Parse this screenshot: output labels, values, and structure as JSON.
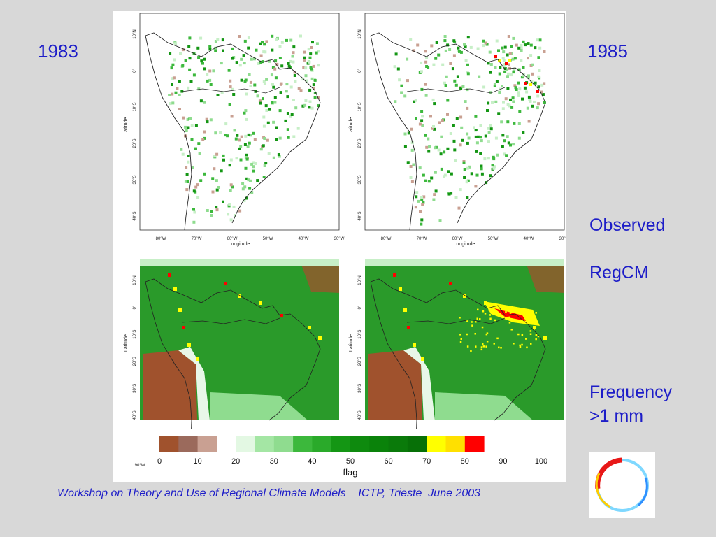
{
  "labels": {
    "year_left": "1983",
    "year_right": "1985",
    "observed": "Observed",
    "regcm": "RegCM",
    "frequency_line1": "Frequency",
    "frequency_line2": ">1 mm",
    "footer": "Workshop on Theory and Use of Regional Climate Models    ICTP, Trieste  June 2003"
  },
  "map_axes": {
    "lat_ticks": [
      "10°N",
      "0°",
      "10°S",
      "20°S",
      "30°S",
      "40°S"
    ],
    "lon_ticks": [
      "80°W",
      "70°W",
      "60°W",
      "50°W",
      "40°W",
      "30°W"
    ],
    "lon_tick_left_bottom": "90°W",
    "ylabel": "Latitude",
    "xlabel": "Longitude"
  },
  "colorbar": {
    "ticks": [
      "0",
      "10",
      "20",
      "30",
      "40",
      "50",
      "60",
      "70",
      "80",
      "90",
      "100"
    ],
    "label": "flag",
    "colors": [
      "#a0522d",
      "#9b6a5c",
      "#c9a092",
      "#ffffff",
      "#e3f8e3",
      "#a4e6a4",
      "#8fdc8f",
      "#3cb83c",
      "#2aaa2a",
      "#149614",
      "#0e8a0e",
      "#0a820a",
      "#0a7a0a",
      "#077007",
      "#ffff00",
      "#ffe000",
      "#ff0000"
    ]
  }
}
